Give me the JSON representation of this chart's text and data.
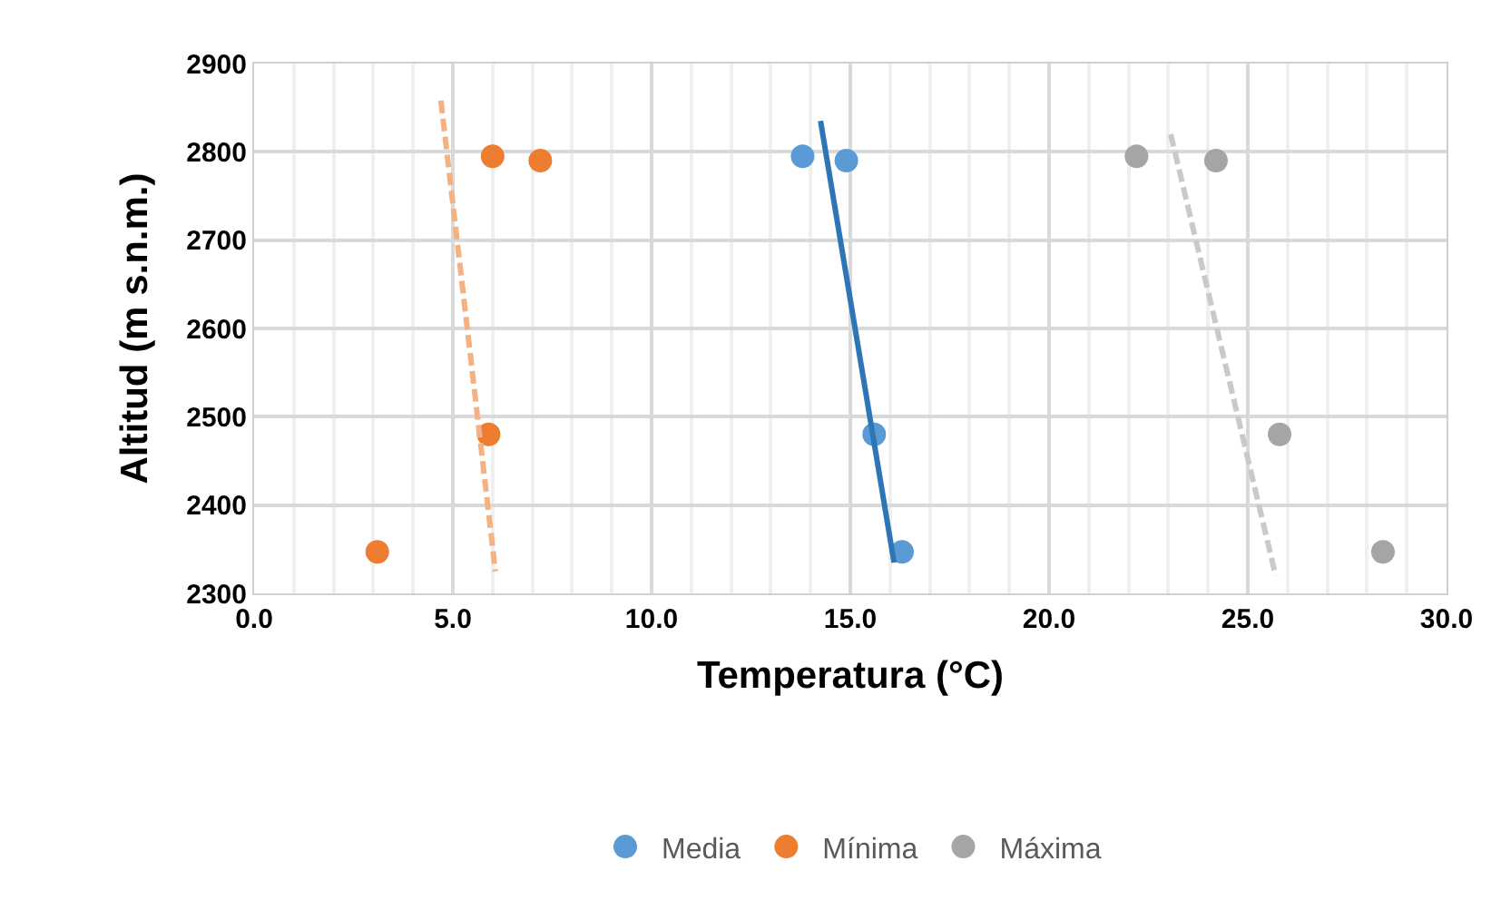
{
  "chart_data": {
    "type": "scatter",
    "xlabel": "Temperatura (°C)",
    "ylabel": "Altitud (m s.n.m.)",
    "xlim": [
      0,
      30
    ],
    "xticks": [
      {
        "value": 0,
        "label": "0.0"
      },
      {
        "value": 5,
        "label": "5.0"
      },
      {
        "value": 10,
        "label": "10.0"
      },
      {
        "value": 15,
        "label": "15.0"
      },
      {
        "value": 20,
        "label": "20.0"
      },
      {
        "value": 25,
        "label": "25.0"
      },
      {
        "value": 30,
        "label": "30.0"
      }
    ],
    "ylim": [
      2300,
      2900
    ],
    "yticks": [
      2300,
      2400,
      2500,
      2600,
      2700,
      2800,
      2900
    ],
    "grid": true,
    "legend": "bottom",
    "marker": "circle",
    "series": [
      {
        "name": "Media",
        "color": "#5b9bd5",
        "x": [
          13.8,
          14.9,
          15.6,
          16.3
        ],
        "values": [
          2795,
          2790,
          2480,
          2347
        ]
      },
      {
        "name": "Mínima",
        "color": "#ed7d31",
        "x": [
          3.1,
          5.9,
          6.0,
          7.2
        ],
        "values": [
          2347,
          2480,
          2795,
          2790
        ]
      },
      {
        "name": "Máxima",
        "color": "#a5a5a5",
        "x": [
          22.2,
          24.2,
          25.8,
          28.4
        ],
        "values": [
          2795,
          2790,
          2480,
          2347
        ]
      },
      {
        "type": "line",
        "color": "#2e75b6",
        "line_style": "solid",
        "marker": "none",
        "x": [
          14.25,
          16.1
        ],
        "values": [
          2835,
          2335
        ]
      },
      {
        "type": "line",
        "color": "#f4b183",
        "line_style": "dashed",
        "marker": "none",
        "x": [
          4.7,
          6.07
        ],
        "values": [
          2858,
          2325
        ]
      },
      {
        "type": "line",
        "color": "#c9c9c9",
        "line_style": "dashed",
        "marker": "none",
        "x": [
          23.06,
          25.7
        ],
        "values": [
          2820,
          2320
        ]
      }
    ]
  }
}
